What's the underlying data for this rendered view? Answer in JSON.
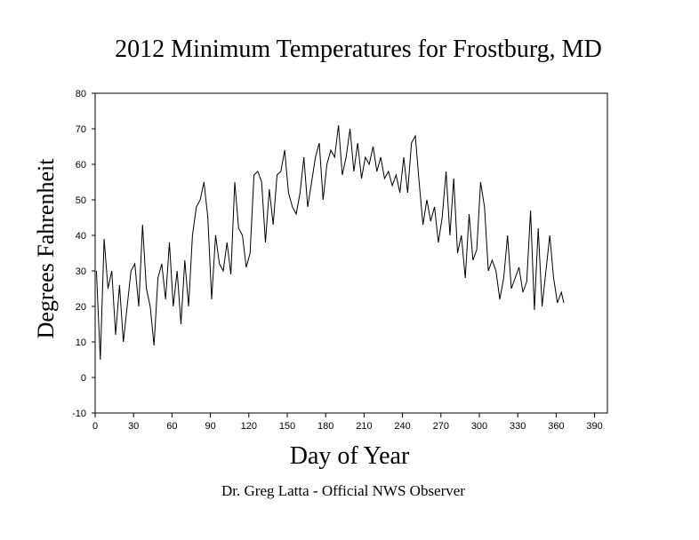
{
  "chart_data": {
    "type": "line",
    "title": "2012 Minimum Temperatures for Frostburg, MD",
    "x_label": "Day of Year",
    "y_label": "Degrees Fahrenheit",
    "footer": "Dr. Greg Latta - Official NWS Observer",
    "xlim": [
      0,
      400
    ],
    "xticks": [
      0,
      30,
      60,
      90,
      120,
      150,
      180,
      210,
      240,
      270,
      300,
      330,
      360,
      390
    ],
    "ylim": [
      -10,
      80
    ],
    "yticks": [
      -10,
      0,
      10,
      20,
      30,
      40,
      50,
      60,
      70,
      80
    ],
    "x": [
      1,
      4,
      7,
      10,
      13,
      16,
      19,
      22,
      25,
      28,
      31,
      34,
      37,
      40,
      43,
      46,
      49,
      52,
      55,
      58,
      61,
      64,
      67,
      70,
      73,
      76,
      79,
      82,
      85,
      88,
      91,
      94,
      97,
      100,
      103,
      106,
      109,
      112,
      115,
      118,
      121,
      124,
      127,
      130,
      133,
      136,
      139,
      142,
      145,
      148,
      151,
      154,
      157,
      160,
      163,
      166,
      169,
      172,
      175,
      178,
      181,
      184,
      187,
      190,
      193,
      196,
      199,
      202,
      205,
      208,
      211,
      214,
      217,
      220,
      223,
      226,
      229,
      232,
      235,
      238,
      241,
      244,
      247,
      250,
      253,
      256,
      259,
      262,
      265,
      268,
      271,
      274,
      277,
      280,
      283,
      286,
      289,
      292,
      295,
      298,
      301,
      304,
      307,
      310,
      313,
      316,
      319,
      322,
      325,
      328,
      331,
      334,
      337,
      340,
      343,
      346,
      349,
      352,
      355,
      358,
      361,
      364,
      366
    ],
    "values": [
      30,
      5,
      39,
      25,
      30,
      12,
      26,
      10,
      20,
      30,
      32,
      20,
      43,
      25,
      20,
      9,
      28,
      32,
      22,
      38,
      20,
      30,
      15,
      33,
      20,
      40,
      48,
      50,
      55,
      45,
      22,
      40,
      32,
      30,
      38,
      29,
      55,
      42,
      40,
      31,
      35,
      57,
      58,
      55,
      38,
      53,
      43,
      57,
      58,
      64,
      52,
      48,
      46,
      52,
      62,
      48,
      55,
      62,
      66,
      50,
      60,
      64,
      62,
      71,
      57,
      62,
      70,
      58,
      66,
      56,
      62,
      60,
      65,
      58,
      62,
      56,
      58,
      54,
      57,
      52,
      62,
      52,
      66,
      68,
      55,
      43,
      50,
      44,
      48,
      38,
      45,
      58,
      40,
      56,
      35,
      40,
      28,
      46,
      33,
      36,
      55,
      48,
      30,
      33,
      30,
      22,
      28,
      40,
      25,
      28,
      31,
      24,
      27,
      47,
      19,
      42,
      20,
      30,
      40,
      28,
      21,
      24,
      21
    ],
    "color": "#000000"
  }
}
